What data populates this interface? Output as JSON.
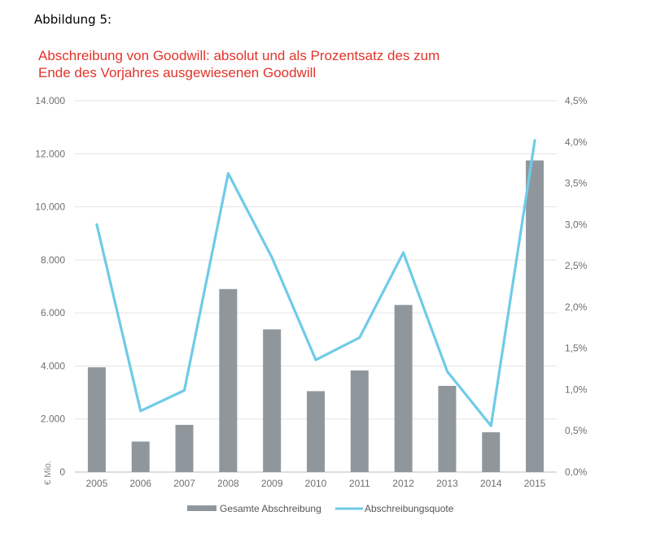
{
  "caption": "Abbildung 5:",
  "chart_data": {
    "type": "bar",
    "title_line1": "Abschreibung von Goodwill: absolut und als Prozentsatz des zum",
    "title_line2": "Ende des Vorjahres ausgewiesenen Goodwill",
    "ylabel": "€ Mio.",
    "categories": [
      "2005",
      "2006",
      "2007",
      "2008",
      "2009",
      "2010",
      "2011",
      "2012",
      "2013",
      "2014",
      "2015"
    ],
    "ylim": [
      0,
      14000
    ],
    "y2lim": [
      0,
      4.5
    ],
    "y_ticks": [
      "0",
      "2.000",
      "4.000",
      "6.000",
      "8.000",
      "10.000",
      "12.000",
      "14.000"
    ],
    "y2_ticks": [
      "0,0%",
      "0,5%",
      "1,0%",
      "1,5%",
      "2,0%",
      "2,5%",
      "3,0%",
      "3,5%",
      "4,0%",
      "4,5%"
    ],
    "grid": true,
    "legend_position": "bottom",
    "series": [
      {
        "name": "Gesamte Abschreibung",
        "type": "bar",
        "axis": "left",
        "color": "#8f979d",
        "values": [
          3950,
          1150,
          1780,
          6900,
          5380,
          3050,
          3830,
          6300,
          3250,
          1500,
          11750
        ]
      },
      {
        "name": "Abschreibungsquote",
        "type": "line",
        "axis": "right",
        "color": "#6fcbe8",
        "values": [
          3.0,
          0.74,
          0.99,
          3.62,
          2.6,
          1.36,
          1.63,
          2.66,
          1.22,
          0.56,
          4.02
        ]
      }
    ]
  }
}
